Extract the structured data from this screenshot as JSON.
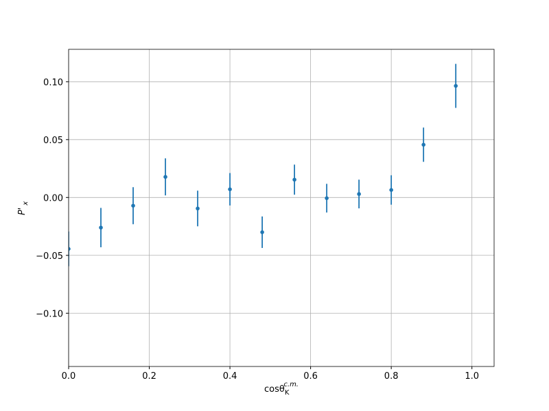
{
  "chart_data": {
    "type": "errorbar",
    "xlabel": {
      "text": "cosθ",
      "sub": "K",
      "sup": "c.m."
    },
    "ylabel": {
      "text": "P'",
      "sub": "x"
    },
    "series": [
      {
        "color": "#1f77b4",
        "x": [
          0,
          0.08,
          0.16,
          0.24,
          0.32,
          0.4,
          0.48,
          0.56,
          0.64,
          0.72,
          0.8,
          0.88,
          0.96
        ],
        "values": [
          -0.0444,
          -0.026,
          -0.0071,
          0.0178,
          -0.0095,
          0.0071,
          -0.03,
          0.0154,
          -0.0006,
          0.003,
          0.0065,
          0.0456,
          0.0964
        ],
        "errors": [
          0.015,
          0.017,
          0.016,
          0.016,
          0.0154,
          0.014,
          0.0136,
          0.013,
          0.0124,
          0.0124,
          0.0127,
          0.0148,
          0.019
        ]
      }
    ],
    "xlim": [
      0,
      1.055
    ],
    "ylim": [
      -0.146,
      0.128
    ],
    "xticks": [
      {
        "value": 0,
        "label": "0.0"
      },
      {
        "value": 0.2,
        "label": "0.2"
      },
      {
        "value": 0.4,
        "label": "0.4"
      },
      {
        "value": 0.6,
        "label": "0.6"
      },
      {
        "value": 0.8,
        "label": "0.8"
      },
      {
        "value": 1.0,
        "label": "1.0"
      }
    ],
    "yticks": [
      {
        "value": -0.1,
        "label": "−0.10"
      },
      {
        "value": -0.05,
        "label": "−0.05"
      },
      {
        "value": 0,
        "label": "0.00"
      },
      {
        "value": 0.05,
        "label": "0.05"
      },
      {
        "value": 0.1,
        "label": "0.10"
      }
    ],
    "grid": true
  }
}
